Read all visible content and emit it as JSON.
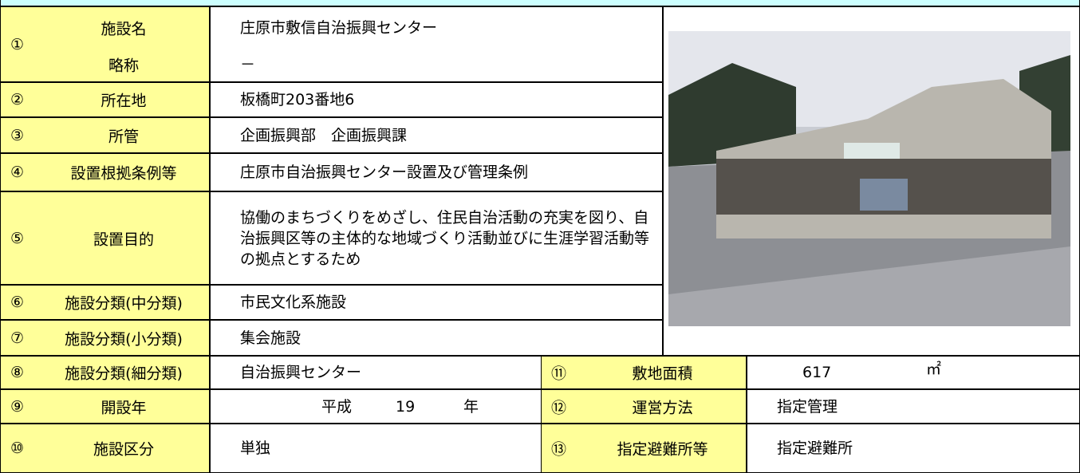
{
  "facility": {
    "number": "①",
    "name_label": "施設名",
    "name": "庄原市敷信自治振興センター",
    "abbr_label": "略称",
    "abbr": "－"
  },
  "rows": [
    {
      "number": "②",
      "label": "所在地",
      "value": "板橋町203番地6"
    },
    {
      "number": "③",
      "label": "所管",
      "value": "企画振興部　企画振興課"
    },
    {
      "number": "④",
      "label": "設置根拠条例等",
      "value": "庄原市自治振興センター設置及び管理条例"
    },
    {
      "number": "⑤",
      "label": "設置目的",
      "value": "協働のまちづくりをめざし、住民自治活動の充実を図り、自治振興区等の主体的な地域づくり活動並びに生涯学習活動等の拠点とするため"
    },
    {
      "number": "⑥",
      "label": "施設分類(中分類)",
      "value": "市民文化系施設"
    },
    {
      "number": "⑦",
      "label": "施設分類(小分類)",
      "value": "集会施設"
    },
    {
      "number": "⑧",
      "label": "施設分類(細分類)",
      "value": "自治振興センター"
    },
    {
      "number": "⑩",
      "label": "施設区分",
      "value": "単独"
    }
  ],
  "opening": {
    "number": "⑨",
    "label": "開設年",
    "era": "平成",
    "year": 19,
    "unit": "年"
  },
  "right": [
    {
      "number": "⑪",
      "label": "敷地面積",
      "value": 617,
      "unit": "㎡"
    },
    {
      "number": "⑫",
      "label": "運営方法",
      "value": "指定管理"
    },
    {
      "number": "⑬",
      "label": "指定避難所等",
      "value": "指定避難所"
    }
  ]
}
